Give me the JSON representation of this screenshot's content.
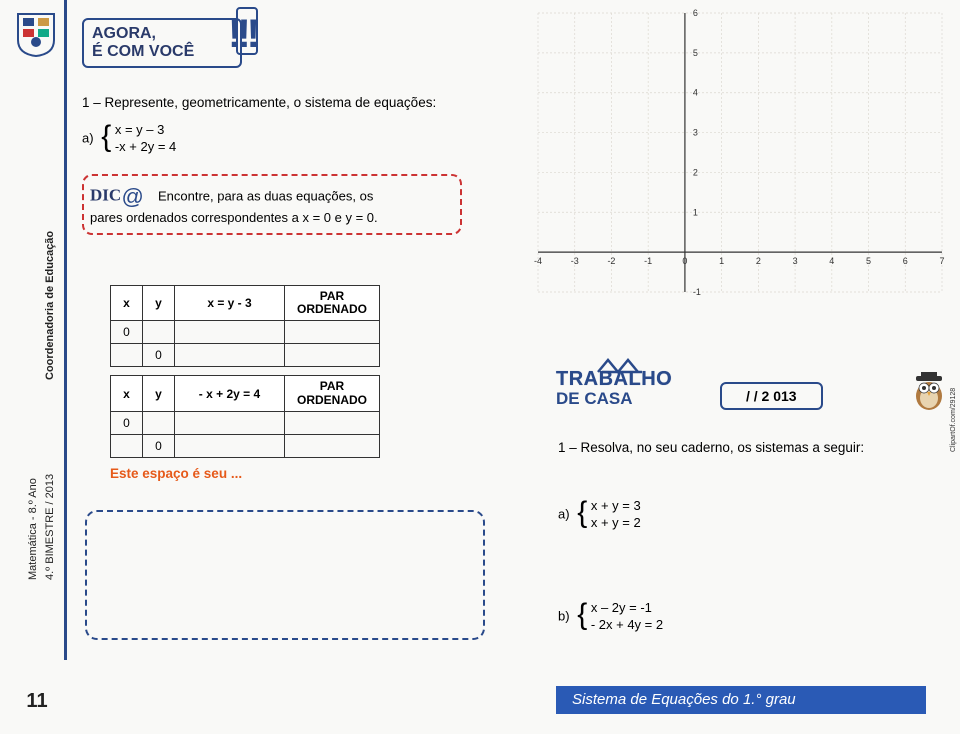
{
  "sidebar": {
    "crest_color": "#2a4a8a",
    "crest_accent": "#c33",
    "vertical_label": "Coordenadoria de Educação",
    "subject_line1": "Matemática - 8.º Ano",
    "subject_line2": "4.º BIMESTRE / 2013"
  },
  "header": {
    "line1": "AGORA,",
    "line2": "É COM VOCÊ",
    "excl": "!!!"
  },
  "question": {
    "prompt": "1 – Represente, geometricamente, o sistema de equações:",
    "label": "a)",
    "eq1": "x = y – 3",
    "eq2": "-x + 2y = 4"
  },
  "tip": {
    "prefix": "DIC",
    "at": "@",
    "text_part1": "Encontre, para as duas equações, os",
    "text_part2": "pares ordenados correspondentes a x = 0 e y = 0."
  },
  "table1": {
    "h1": "x",
    "h2": "y",
    "h3": "x = y - 3",
    "h4": "PAR\nORDENADO",
    "rows": [
      [
        "0",
        "",
        "",
        ""
      ],
      [
        "",
        "0",
        "",
        ""
      ]
    ]
  },
  "table2": {
    "h1": "x",
    "h2": "y",
    "h3": "- x + 2y = 4",
    "h4": "PAR\nORDENADO",
    "rows": [
      [
        "0",
        "",
        "",
        ""
      ],
      [
        "",
        "0",
        "",
        ""
      ]
    ]
  },
  "workspace_label": "Este espaço é seu ...",
  "chart": {
    "xlim": [
      -4,
      7
    ],
    "ylim": [
      -1,
      6
    ],
    "xticks": [
      -4,
      -3,
      -2,
      -1,
      0,
      1,
      2,
      3,
      4,
      5,
      6,
      7
    ],
    "yticks": [
      -1,
      0,
      1,
      2,
      3,
      4,
      5,
      6
    ],
    "grid_color": "#dcd8d0",
    "axis_color": "#333333",
    "tick_font_size": 9,
    "background": "#f9f9f7"
  },
  "homework": {
    "title": "TRABALHO",
    "subtitle": "DE CASA",
    "date": "/      / 2 013",
    "instruction": "1 – Resolva, no seu caderno, os sistemas a seguir:",
    "a_label": "a)",
    "a_eq1": "x + y = 3",
    "a_eq2": "x + y = 2",
    "b_label": "b)",
    "b_eq1": "x – 2y = -1",
    "b_eq2": "- 2x + 4y = 2"
  },
  "attribution": "ClipartOf.com/29128",
  "page_number": "11",
  "footer": "Sistema de Equações do 1.° grau"
}
